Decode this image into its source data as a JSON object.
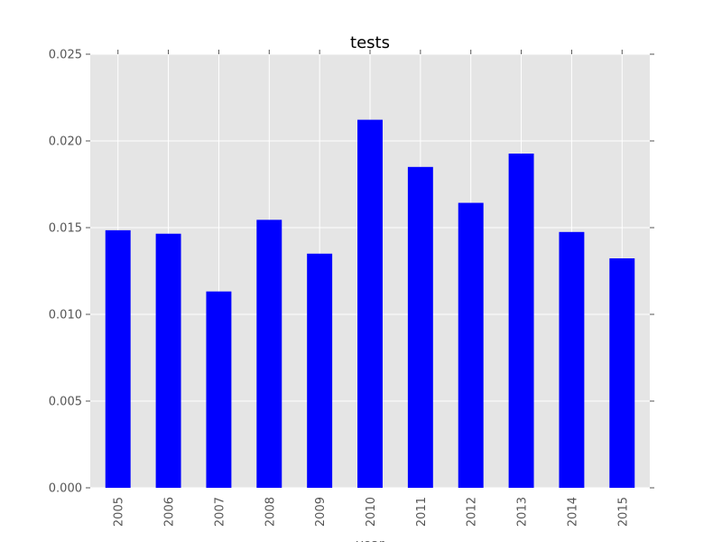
{
  "chart_data": {
    "type": "bar",
    "title": "tests",
    "xlabel": "year",
    "ylabel": "",
    "categories": [
      "2005",
      "2006",
      "2007",
      "2008",
      "2009",
      "2010",
      "2011",
      "2012",
      "2013",
      "2014",
      "2015"
    ],
    "values": [
      0.01485,
      0.01465,
      0.01132,
      0.01545,
      0.0135,
      0.02122,
      0.0185,
      0.01643,
      0.01927,
      0.01475,
      0.01323
    ],
    "ylim": [
      0,
      0.025
    ],
    "yticks": [
      "0.000",
      "0.005",
      "0.010",
      "0.015",
      "0.020",
      "0.025"
    ],
    "grid": true,
    "colors": {
      "bar": "#0000ff",
      "plot_background": "#e5e5e5",
      "grid": "#ffffff",
      "tick_text": "#555555"
    }
  }
}
